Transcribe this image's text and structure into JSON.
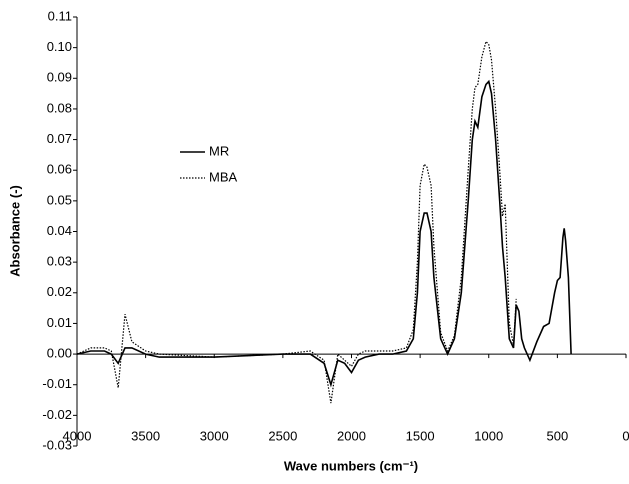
{
  "chart_data": {
    "type": "line",
    "x_label": "Wave numbers (cm⁻¹)",
    "y_label": "Absorbance (-)",
    "xlim": [
      4000,
      0
    ],
    "xticks": [
      4000,
      3500,
      3000,
      2500,
      2000,
      1500,
      1000,
      500,
      0
    ],
    "ylim": [
      -0.03,
      0.11
    ],
    "yticks": [
      -0.03,
      -0.02,
      -0.01,
      {
        "value": 0,
        "label": "0.00"
      },
      0.01,
      0.02,
      0.03,
      0.04,
      0.05,
      0.06,
      0.07,
      0.08,
      0.09,
      {
        "value": 0.1,
        "label": "0.10"
      },
      0.11
    ],
    "x": [
      4000,
      3900,
      3800,
      3750,
      3700,
      3650,
      3600,
      3500,
      3400,
      3000,
      2500,
      2300,
      2200,
      2150,
      2100,
      2050,
      2000,
      1950,
      1900,
      1800,
      1700,
      1600,
      1550,
      1520,
      1500,
      1470,
      1450,
      1420,
      1400,
      1350,
      1300,
      1250,
      1200,
      1150,
      1120,
      1100,
      1080,
      1050,
      1020,
      1000,
      980,
      950,
      920,
      900,
      880,
      850,
      820,
      800,
      780,
      760,
      740,
      700,
      650,
      600,
      560,
      520,
      500,
      480,
      460,
      450,
      440,
      420,
      400
    ],
    "series": [
      {
        "name": "MR",
        "color": "#000000",
        "dash": "solid",
        "values": [
          0,
          0.001,
          0.001,
          0,
          -0.003,
          0.002,
          0.002,
          0,
          -0.001,
          -0.001,
          0,
          0,
          -0.003,
          -0.01,
          -0.002,
          -0.003,
          -0.006,
          -0.002,
          -0.001,
          0,
          0,
          0.001,
          0.005,
          0.02,
          0.04,
          0.046,
          0.046,
          0.04,
          0.025,
          0.005,
          0,
          0.005,
          0.02,
          0.05,
          0.07,
          0.076,
          0.074,
          0.084,
          0.088,
          0.089,
          0.085,
          0.07,
          0.05,
          0.035,
          0.025,
          0.005,
          0.002,
          0.016,
          0.014,
          0.005,
          0.002,
          -0.002,
          0.004,
          0.009,
          0.01,
          0.02,
          0.024,
          0.025,
          0.038,
          0.041,
          0.037,
          0.025,
          0
        ]
      },
      {
        "name": "MBA",
        "color": "#000000",
        "dash": "dotted",
        "values": [
          0,
          0.002,
          0.002,
          0.001,
          -0.011,
          0.013,
          0.004,
          0.001,
          0,
          -0.001,
          0,
          0.001,
          -0.002,
          -0.016,
          0,
          -0.002,
          -0.004,
          0,
          0.001,
          0.001,
          0.001,
          0.002,
          0.008,
          0.03,
          0.055,
          0.062,
          0.061,
          0.055,
          0.035,
          0.007,
          0.001,
          0.006,
          0.025,
          0.06,
          0.08,
          0.087,
          0.088,
          0.097,
          0.102,
          0.101,
          0.096,
          0.08,
          0.06,
          0.045,
          0.049,
          0.01,
          0.003,
          0.018,
          null,
          null,
          null,
          null,
          null,
          null,
          null,
          null,
          null,
          null,
          null,
          null,
          null,
          null,
          null
        ]
      }
    ]
  }
}
